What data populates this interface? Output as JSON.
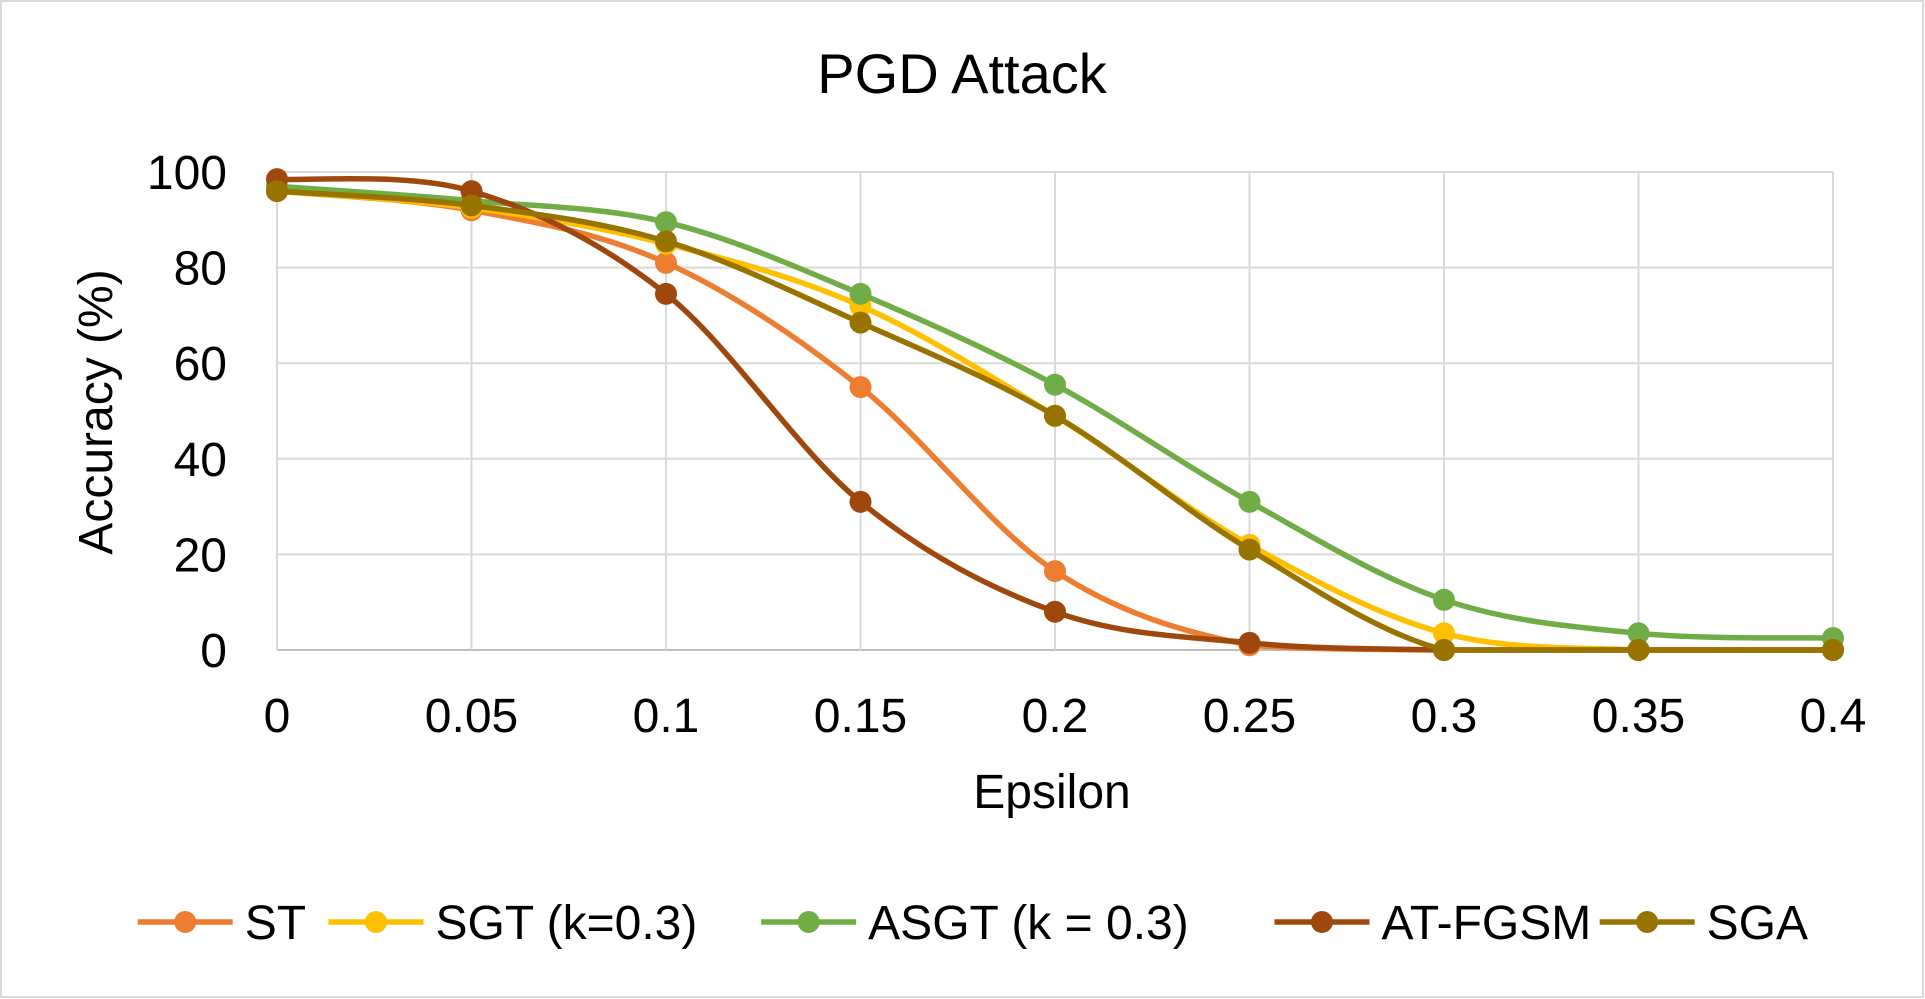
{
  "chart_data": {
    "type": "line",
    "title": "PGD Attack",
    "xlabel": "Epsilon",
    "ylabel": "Accuracy (%)",
    "x": [
      0,
      0.05,
      0.1,
      0.15,
      0.2,
      0.25,
      0.3,
      0.35,
      0.4
    ],
    "x_tick_labels": [
      "0",
      "0.05",
      "0.1",
      "0.15",
      "0.2",
      "0.25",
      "0.3",
      "0.35",
      "0.4"
    ],
    "ylim": [
      0,
      100
    ],
    "y_ticks": [
      0,
      20,
      40,
      60,
      80,
      100
    ],
    "y_tick_labels": [
      "0",
      "20",
      "40",
      "60",
      "80",
      "100"
    ],
    "grid": true,
    "smooth": true,
    "legend_position": "bottom",
    "series": [
      {
        "name": "ST",
        "color": "#ED7D31",
        "values": [
          96,
          92,
          81,
          55,
          16.5,
          1,
          0,
          0,
          0
        ]
      },
      {
        "name": "SGT (k=0.3)",
        "color": "#FFC000",
        "values": [
          96,
          92.5,
          85,
          72,
          49,
          22,
          3.5,
          0,
          0
        ]
      },
      {
        "name": "ASGT (k = 0.3)",
        "color": "#70AD47",
        "values": [
          97,
          94,
          89.5,
          74.5,
          55.5,
          31,
          10.5,
          3.5,
          2.5
        ]
      },
      {
        "name": "AT-FGSM",
        "color": "#9E480E",
        "values": [
          98.5,
          96,
          74.5,
          31,
          8,
          1.5,
          0,
          0,
          0
        ]
      },
      {
        "name": "SGA",
        "color": "#997300",
        "values": [
          96,
          93,
          85.5,
          68.5,
          49,
          21,
          0,
          0,
          0
        ]
      }
    ]
  }
}
